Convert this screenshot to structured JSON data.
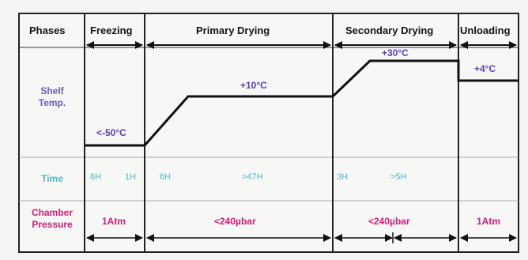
{
  "header": {
    "phases_label": "Phases",
    "phases": [
      "Freezing",
      "Primary Drying",
      "Secondary Drying",
      "Unloading"
    ]
  },
  "rows": {
    "shelf_temp_label": [
      "Shelf",
      "Temp."
    ],
    "time_label": "Time",
    "chamber_pressure_label": [
      "Chamber",
      "Pressure"
    ]
  },
  "shelf_temps": {
    "freezing": "<-50°C",
    "primary": "+10°C",
    "secondary": "+30°C",
    "unloading": "+4°C"
  },
  "times": [
    "6H",
    "1H",
    "6H",
    ">47H",
    "3H",
    ">5H"
  ],
  "pressures": {
    "freezing": "1Atm",
    "primary": "<240µbar",
    "secondary": "<240µbar",
    "unloading": "1Atm"
  },
  "colors": {
    "shelf_label": "#6a5acd",
    "temp_label": "#5b3fb5",
    "time_label": "#4fb8c9",
    "pressure_label": "#d81b7a",
    "lines": "#111111"
  }
}
